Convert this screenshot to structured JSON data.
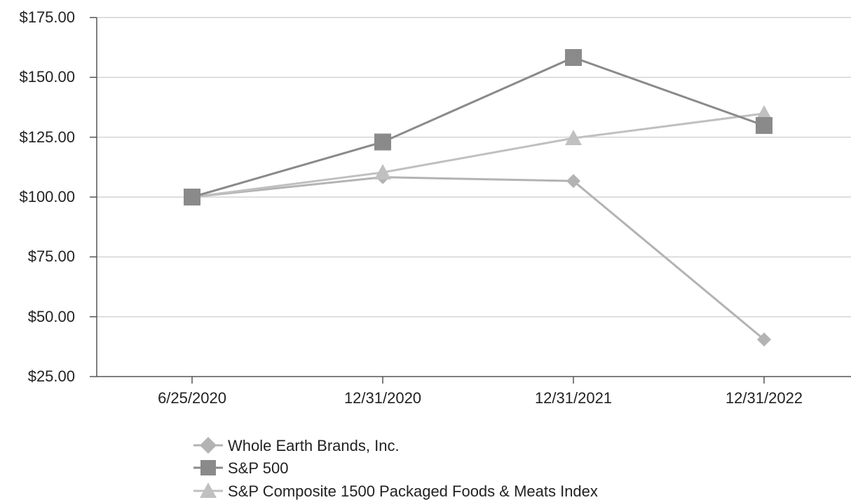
{
  "chart_data": {
    "type": "line",
    "title": "",
    "xlabel": "",
    "ylabel": "",
    "categories": [
      "6/25/2020",
      "12/31/2020",
      "12/31/2021",
      "12/31/2022"
    ],
    "ylim": [
      25,
      175
    ],
    "yticks": [
      "$175.00",
      "$150.00",
      "$125.00",
      "$100.00",
      "$75.00",
      "$50.00",
      "$25.00"
    ],
    "ytick_values": [
      175,
      150,
      125,
      100,
      75,
      50,
      25
    ],
    "grid": true,
    "legend_position": "bottom",
    "series": [
      {
        "name": "Whole Earth Brands, Inc.",
        "marker": "diamond",
        "color": "#b3b3b3",
        "values": [
          100.0,
          108.3,
          106.7,
          40.5
        ]
      },
      {
        "name": "S&P 500",
        "marker": "square",
        "color": "#8a8a8a",
        "values": [
          100.0,
          123.0,
          158.3,
          129.9
        ]
      },
      {
        "name": "S&P Composite 1500 Packaged Foods & Meats Index",
        "marker": "triangle",
        "color": "#c0c0c0",
        "values": [
          100.0,
          110.3,
          124.6,
          134.9
        ]
      }
    ]
  }
}
